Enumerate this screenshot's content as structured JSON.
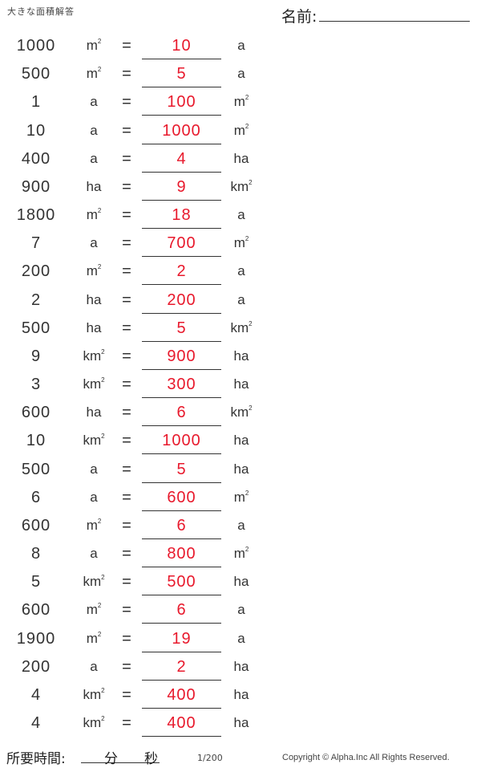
{
  "header": {
    "title": "大きな面積解答",
    "name_label": "名前:"
  },
  "colors": {
    "answer": "#e8192c",
    "text": "#333333"
  },
  "equals_sign": "=",
  "rows": [
    {
      "value": "1000",
      "from_unit": "m²",
      "answer": "10",
      "to_unit": "a"
    },
    {
      "value": "500",
      "from_unit": "m²",
      "answer": "5",
      "to_unit": "a"
    },
    {
      "value": "1",
      "from_unit": "a",
      "answer": "100",
      "to_unit": "m²"
    },
    {
      "value": "10",
      "from_unit": "a",
      "answer": "1000",
      "to_unit": "m²"
    },
    {
      "value": "400",
      "from_unit": "a",
      "answer": "4",
      "to_unit": "ha"
    },
    {
      "value": "900",
      "from_unit": "ha",
      "answer": "9",
      "to_unit": "km²"
    },
    {
      "value": "1800",
      "from_unit": "m²",
      "answer": "18",
      "to_unit": "a"
    },
    {
      "value": "7",
      "from_unit": "a",
      "answer": "700",
      "to_unit": "m²"
    },
    {
      "value": "200",
      "from_unit": "m²",
      "answer": "2",
      "to_unit": "a"
    },
    {
      "value": "2",
      "from_unit": "ha",
      "answer": "200",
      "to_unit": "a"
    },
    {
      "value": "500",
      "from_unit": "ha",
      "answer": "5",
      "to_unit": "km²"
    },
    {
      "value": "9",
      "from_unit": "km²",
      "answer": "900",
      "to_unit": "ha"
    },
    {
      "value": "3",
      "from_unit": "km²",
      "answer": "300",
      "to_unit": "ha"
    },
    {
      "value": "600",
      "from_unit": "ha",
      "answer": "6",
      "to_unit": "km²"
    },
    {
      "value": "10",
      "from_unit": "km²",
      "answer": "1000",
      "to_unit": "ha"
    },
    {
      "value": "500",
      "from_unit": "a",
      "answer": "5",
      "to_unit": "ha"
    },
    {
      "value": "6",
      "from_unit": "a",
      "answer": "600",
      "to_unit": "m²"
    },
    {
      "value": "600",
      "from_unit": "m²",
      "answer": "6",
      "to_unit": "a"
    },
    {
      "value": "8",
      "from_unit": "a",
      "answer": "800",
      "to_unit": "m²"
    },
    {
      "value": "5",
      "from_unit": "km²",
      "answer": "500",
      "to_unit": "ha"
    },
    {
      "value": "600",
      "from_unit": "m²",
      "answer": "6",
      "to_unit": "a"
    },
    {
      "value": "1900",
      "from_unit": "m²",
      "answer": "19",
      "to_unit": "a"
    },
    {
      "value": "200",
      "from_unit": "a",
      "answer": "2",
      "to_unit": "ha"
    },
    {
      "value": "4",
      "from_unit": "km²",
      "answer": "400",
      "to_unit": "ha"
    },
    {
      "value": "4",
      "from_unit": "km²",
      "answer": "400",
      "to_unit": "ha"
    }
  ],
  "footer": {
    "time_label": "所要時間:",
    "minutes_label": "分",
    "seconds_label": "秒",
    "page": "1/200",
    "copyright": "Copyright © Alpha.Inc All Rights Reserved."
  }
}
